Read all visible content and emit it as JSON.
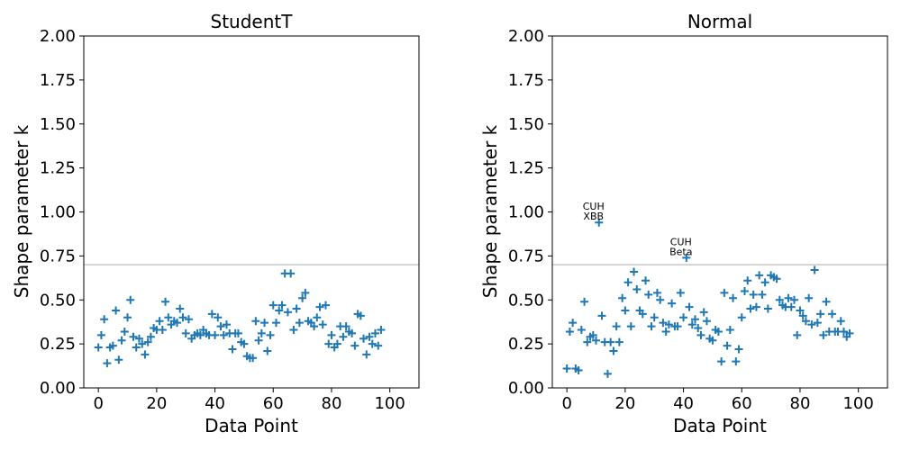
{
  "chart_data": [
    {
      "type": "scatter",
      "title": "StudentT",
      "xlabel": "Data Point",
      "ylabel": "Shape parameter k",
      "xlim": [
        -5,
        110
      ],
      "ylim": [
        0,
        2
      ],
      "xticks": [
        0,
        20,
        40,
        60,
        80,
        100
      ],
      "yticks": [
        "0.00",
        "0.25",
        "0.50",
        "0.75",
        "1.00",
        "1.25",
        "1.50",
        "1.75",
        "2.00"
      ],
      "threshold": 0.7,
      "marker": "+",
      "color": "#1f77b4",
      "threshold_color": "#c8c8c8",
      "x": [
        0,
        1,
        2,
        3,
        4,
        5,
        6,
        7,
        8,
        9,
        10,
        11,
        12,
        13,
        14,
        15,
        16,
        17,
        18,
        19,
        20,
        21,
        22,
        23,
        24,
        25,
        26,
        27,
        28,
        29,
        30,
        31,
        32,
        33,
        34,
        35,
        36,
        37,
        38,
        39,
        40,
        41,
        42,
        43,
        44,
        45,
        46,
        47,
        48,
        49,
        50,
        51,
        52,
        53,
        54,
        55,
        56,
        57,
        58,
        59,
        60,
        61,
        62,
        63,
        64,
        65,
        66,
        67,
        68,
        69,
        70,
        71,
        72,
        73,
        74,
        75,
        76,
        77,
        78,
        79,
        80,
        81,
        82,
        83,
        84,
        85,
        86,
        87,
        88,
        89,
        90,
        91,
        92,
        93,
        94,
        95,
        96,
        97
      ],
      "y": [
        0.23,
        0.3,
        0.39,
        0.14,
        0.23,
        0.24,
        0.44,
        0.16,
        0.27,
        0.32,
        0.4,
        0.5,
        0.29,
        0.23,
        0.28,
        0.25,
        0.19,
        0.26,
        0.29,
        0.34,
        0.33,
        0.38,
        0.33,
        0.49,
        0.4,
        0.36,
        0.38,
        0.37,
        0.45,
        0.4,
        0.31,
        0.39,
        0.28,
        0.3,
        0.31,
        0.3,
        0.33,
        0.31,
        0.3,
        0.42,
        0.3,
        0.4,
        0.35,
        0.3,
        0.36,
        0.31,
        0.22,
        0.31,
        0.31,
        0.26,
        0.25,
        0.18,
        0.17,
        0.17,
        0.38,
        0.27,
        0.31,
        0.37,
        0.21,
        0.3,
        0.47,
        0.37,
        0.44,
        0.47,
        0.65,
        0.43,
        0.65,
        0.33,
        0.45,
        0.37,
        0.51,
        0.54,
        0.38,
        0.37,
        0.35,
        0.4,
        0.46,
        0.36,
        0.47,
        0.25,
        0.3,
        0.23,
        0.25,
        0.35,
        0.29,
        0.35,
        0.32,
        0.31,
        0.24,
        0.42,
        0.41,
        0.28,
        0.19,
        0.29,
        0.25,
        0.31,
        0.24,
        0.33
      ],
      "annotations": []
    },
    {
      "type": "scatter",
      "title": "Normal",
      "xlabel": "Data Point",
      "ylabel": "Shape parameter k",
      "xlim": [
        -5,
        110
      ],
      "ylim": [
        0,
        2
      ],
      "xticks": [
        0,
        20,
        40,
        60,
        80,
        100
      ],
      "yticks": [
        "0.00",
        "0.25",
        "0.50",
        "0.75",
        "1.00",
        "1.25",
        "1.50",
        "1.75",
        "2.00"
      ],
      "threshold": 0.7,
      "marker": "+",
      "color": "#1f77b4",
      "threshold_color": "#c8c8c8",
      "x": [
        0,
        1,
        2,
        3,
        4,
        5,
        6,
        7,
        8,
        9,
        10,
        11,
        12,
        13,
        14,
        15,
        16,
        17,
        18,
        19,
        20,
        21,
        22,
        23,
        24,
        25,
        26,
        27,
        28,
        29,
        30,
        31,
        32,
        33,
        34,
        35,
        36,
        37,
        38,
        39,
        40,
        41,
        42,
        43,
        44,
        45,
        46,
        47,
        48,
        49,
        50,
        51,
        52,
        53,
        54,
        55,
        56,
        57,
        58,
        59,
        60,
        61,
        62,
        63,
        64,
        65,
        66,
        67,
        68,
        69,
        70,
        71,
        72,
        73,
        74,
        75,
        76,
        77,
        78,
        79,
        80,
        81,
        82,
        83,
        84,
        85,
        86,
        87,
        88,
        89,
        90,
        91,
        92,
        93,
        94,
        95,
        96,
        97
      ],
      "y": [
        0.11,
        0.32,
        0.37,
        0.11,
        0.1,
        0.33,
        0.49,
        0.26,
        0.29,
        0.3,
        0.27,
        0.94,
        0.41,
        0.26,
        0.08,
        0.26,
        0.21,
        0.35,
        0.26,
        0.51,
        0.44,
        0.6,
        0.35,
        0.66,
        0.56,
        0.44,
        0.42,
        0.61,
        0.53,
        0.35,
        0.4,
        0.54,
        0.5,
        0.37,
        0.32,
        0.36,
        0.48,
        0.35,
        0.35,
        0.54,
        0.4,
        0.74,
        0.46,
        0.36,
        0.39,
        0.34,
        0.3,
        0.43,
        0.38,
        0.28,
        0.27,
        0.33,
        0.32,
        0.15,
        0.54,
        0.24,
        0.33,
        0.51,
        0.15,
        0.22,
        0.4,
        0.55,
        0.61,
        0.45,
        0.53,
        0.46,
        0.64,
        0.53,
        0.6,
        0.45,
        0.64,
        0.63,
        0.62,
        0.5,
        0.47,
        0.46,
        0.51,
        0.46,
        0.5,
        0.3,
        0.44,
        0.41,
        0.38,
        0.51,
        0.36,
        0.67,
        0.37,
        0.42,
        0.3,
        0.49,
        0.32,
        0.42,
        0.32,
        0.32,
        0.38,
        0.32,
        0.29,
        0.31
      ],
      "annotations": [
        {
          "x": 11,
          "y": 0.94,
          "lines": [
            "CUH",
            "XBB"
          ]
        },
        {
          "x": 41,
          "y": 0.74,
          "lines": [
            "CUH",
            "Beta"
          ]
        }
      ]
    }
  ]
}
